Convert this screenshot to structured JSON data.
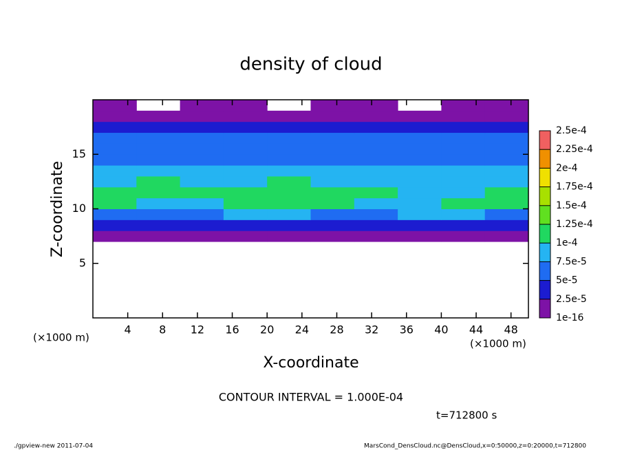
{
  "chart_data": {
    "type": "contour",
    "title": "density of cloud",
    "xlabel": "X-coordinate",
    "ylabel": "Z-coordinate",
    "xunit_left": "(×1000 m)",
    "xunit_right": "(×1000 m)",
    "contour_note": "CONTOUR INTERVAL = 1.000E-04",
    "time_note": "t=712800 s",
    "footer_left": "./gpview-new  2011-07-04",
    "footer_right": "MarsCond_DensCloud.nc@DensCloud,x=0:50000,z=0:20000,t=712800",
    "xlim": [
      0,
      50
    ],
    "ylim": [
      0,
      20
    ],
    "xticks": [
      4,
      8,
      12,
      16,
      20,
      24,
      28,
      32,
      36,
      40,
      44,
      48
    ],
    "yticks": [
      5,
      10,
      15
    ],
    "x": [
      0,
      5,
      10,
      15,
      20,
      25,
      30,
      35,
      40,
      45,
      50
    ],
    "z": [
      7,
      8,
      9,
      10,
      11,
      12,
      13,
      14,
      15,
      16,
      17,
      18,
      19,
      20
    ],
    "values": [
      [
        1e-05,
        1e-05,
        1e-05,
        1e-05,
        1e-05,
        1e-05,
        1e-05,
        1e-05,
        1e-05,
        1e-05
      ],
      [
        3e-05,
        4e-05,
        3e-05,
        4e-05,
        3e-05,
        3e-05,
        4e-05,
        3e-05,
        4e-05,
        4e-05
      ],
      [
        6e-05,
        7e-05,
        7e-05,
        8e-05,
        8e-05,
        7e-05,
        7e-05,
        8e-05,
        8e-05,
        7e-05
      ],
      [
        0.000105,
        9e-05,
        9.5e-05,
        0.000105,
        0.000105,
        0.000105,
        9.5e-05,
        9e-05,
        0.000105,
        0.000105
      ],
      [
        0.000105,
        0.000105,
        0.000105,
        0.000115,
        0.00012,
        0.00012,
        0.00011,
        9e-05,
        9.5e-05,
        0.000105
      ],
      [
        9e-05,
        0.000105,
        8.5e-05,
        9e-05,
        0.000105,
        9e-05,
        8.5e-05,
        8e-05,
        8.5e-05,
        9e-05
      ],
      [
        8e-05,
        8e-05,
        8e-05,
        8.5e-05,
        8e-05,
        8e-05,
        7.5e-05,
        7.5e-05,
        8e-05,
        8e-05
      ],
      [
        7e-05,
        7e-05,
        7e-05,
        7e-05,
        7e-05,
        7e-05,
        7e-05,
        7e-05,
        7e-05,
        7e-05
      ],
      [
        6.5e-05,
        6.5e-05,
        6.5e-05,
        6.5e-05,
        6.5e-05,
        6.5e-05,
        6.5e-05,
        6.5e-05,
        6.5e-05,
        6.5e-05
      ],
      [
        5.5e-05,
        5.5e-05,
        5.5e-05,
        5.5e-05,
        5.5e-05,
        5.5e-05,
        5.5e-05,
        5.5e-05,
        5.5e-05,
        5.5e-05
      ],
      [
        3.5e-05,
        3.5e-05,
        3.5e-05,
        3.5e-05,
        3.5e-05,
        3.5e-05,
        3.5e-05,
        3.5e-05,
        3.5e-05,
        3.5e-05
      ],
      [
        1e-05,
        1e-05,
        1e-05,
        1e-05,
        1e-05,
        1e-05,
        1e-05,
        1e-05,
        1e-05,
        1e-05
      ],
      [
        1e-05,
        null,
        1e-05,
        1e-05,
        null,
        1e-05,
        1e-05,
        null,
        1e-05,
        1e-05
      ]
    ],
    "levels": [
      {
        "value": 1e-16,
        "label": "1e-16"
      },
      {
        "value": 2.5e-05,
        "label": "2.5e-5"
      },
      {
        "value": 5e-05,
        "label": "5e-5"
      },
      {
        "value": 7.5e-05,
        "label": "7.5e-5"
      },
      {
        "value": 0.0001,
        "label": "1e-4"
      },
      {
        "value": 0.000125,
        "label": "1.25e-4"
      },
      {
        "value": 0.00015,
        "label": "1.5e-4"
      },
      {
        "value": 0.000175,
        "label": "1.75e-4"
      },
      {
        "value": 0.0002,
        "label": "2e-4"
      },
      {
        "value": 0.000225,
        "label": "2.25e-4"
      },
      {
        "value": 0.00025,
        "label": "2.5e-4"
      }
    ],
    "colors": [
      "#7d12a6",
      "#1c1cd0",
      "#1f6cf2",
      "#25b4f2",
      "#20d860",
      "#60e020",
      "#a8e000",
      "#f0e000",
      "#f09000",
      "#f06060"
    ]
  }
}
